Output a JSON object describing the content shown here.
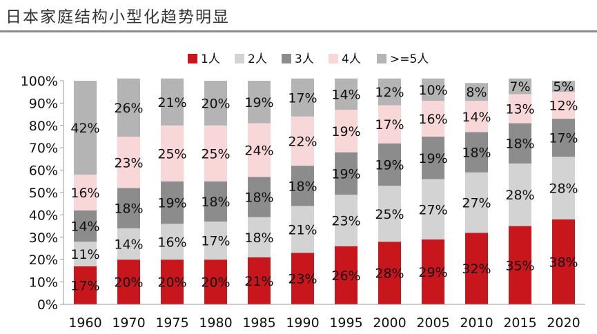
{
  "chart_data": {
    "type": "bar",
    "stacked": true,
    "percent": true,
    "title": "日本家庭结构小型化趋势明显",
    "categories": [
      "1960",
      "1970",
      "1975",
      "1980",
      "1985",
      "1990",
      "1995",
      "2000",
      "2005",
      "2010",
      "2015",
      "2020"
    ],
    "series": [
      {
        "name": "1人",
        "color": "#c8161d",
        "values": [
          17,
          20,
          20,
          20,
          21,
          23,
          26,
          28,
          29,
          32,
          35,
          38
        ],
        "labels": [
          "17%",
          "20%",
          "20%",
          "20%",
          "21%",
          "23%",
          "26%",
          "28%",
          "29%",
          "32%",
          "35%",
          "38%"
        ]
      },
      {
        "name": "2人",
        "color": "#d3d3d3",
        "values": [
          11,
          14,
          16,
          17,
          18,
          21,
          23,
          25,
          27,
          27,
          28,
          28
        ],
        "labels": [
          "11%",
          "14%",
          "16%",
          "17%",
          "18%",
          "21%",
          "23%",
          "25%",
          "27%",
          "27%",
          "28%",
          "28%"
        ]
      },
      {
        "name": "3人",
        "color": "#8c8c8c",
        "values": [
          14,
          18,
          19,
          18,
          18,
          18,
          19,
          19,
          19,
          18,
          18,
          17
        ],
        "labels": [
          "14%",
          "18%",
          "19%",
          "18%",
          "18%",
          "18%",
          "19%",
          "19%",
          "19%",
          "18%",
          "18%",
          "17%"
        ]
      },
      {
        "name": "4人",
        "color": "#f8d7d8",
        "values": [
          16,
          23,
          25,
          25,
          24,
          22,
          19,
          17,
          16,
          14,
          13,
          12
        ],
        "labels": [
          "16%",
          "23%",
          "25%",
          "25%",
          "24%",
          "22%",
          "19%",
          "17%",
          "16%",
          "14%",
          "13%",
          "12%"
        ]
      },
      {
        "name": ">=5人",
        "color": "#b4b4b4",
        "values": [
          42,
          26,
          21,
          20,
          19,
          17,
          14,
          12,
          10,
          8,
          7,
          5
        ],
        "labels": [
          "42%",
          "26%",
          "21%",
          "20%",
          "19%",
          "17%",
          "14%",
          "12%",
          "10%",
          "8%",
          "7%",
          "5%"
        ]
      }
    ],
    "ylim": [
      0,
      100
    ],
    "yticks": [
      0,
      10,
      20,
      30,
      40,
      50,
      60,
      70,
      80,
      90,
      100
    ],
    "ytick_labels": [
      "0%",
      "10%",
      "20%",
      "30%",
      "40%",
      "50%",
      "60%",
      "70%",
      "80%",
      "90%",
      "100%"
    ],
    "legend_position": "top-center",
    "grid": false
  }
}
